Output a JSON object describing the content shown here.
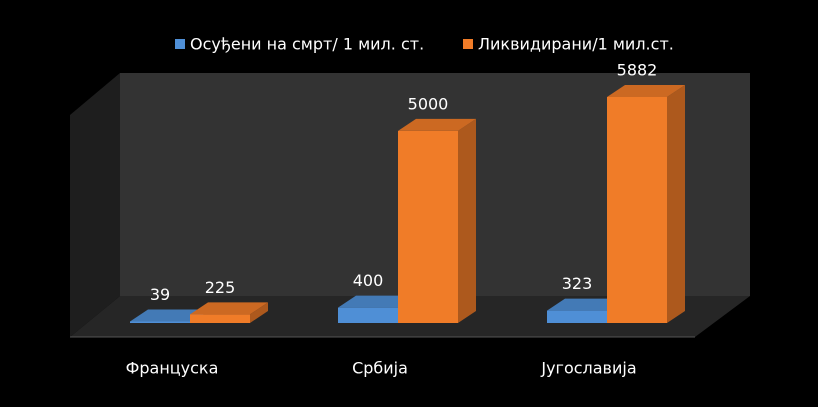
{
  "chart_data": {
    "type": "bar3d",
    "categories": [
      "Француска",
      "Србија",
      "Југославија"
    ],
    "series": [
      {
        "name": "Осуђени на смрт/ 1 мил. ст.",
        "color": "#4f8fd6",
        "values": [
          39,
          400,
          323
        ]
      },
      {
        "name": "Ликвидирани/1 мил.ст.",
        "color": "#f07c28",
        "values": [
          225,
          5000,
          5882
        ]
      }
    ],
    "legend": "top"
  }
}
